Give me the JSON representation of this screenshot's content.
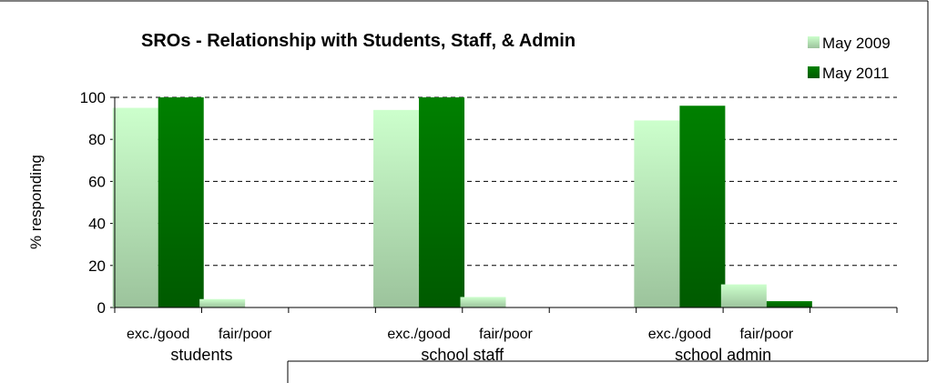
{
  "chart_data": {
    "type": "bar",
    "title": "SROs - Relationship with Students, Staff, & Admin",
    "ylabel": "% responding",
    "xlabel": "",
    "ylim": [
      0,
      100
    ],
    "yticks": [
      0,
      20,
      40,
      60,
      80,
      100
    ],
    "grid": "horizontal-dashed",
    "legend_position": "top-right",
    "groups": [
      "students",
      "school staff",
      "school admin"
    ],
    "categories": [
      "exc./good",
      "fair/poor"
    ],
    "series": [
      {
        "name": "May 2009",
        "color": "#c6f5c6",
        "values": [
          [
            95,
            4
          ],
          [
            94,
            5
          ],
          [
            89,
            11
          ]
        ]
      },
      {
        "name": "May 2011",
        "color": "#0a7a0a",
        "values": [
          [
            100,
            0
          ],
          [
            100,
            0
          ],
          [
            96,
            3
          ]
        ]
      }
    ]
  }
}
